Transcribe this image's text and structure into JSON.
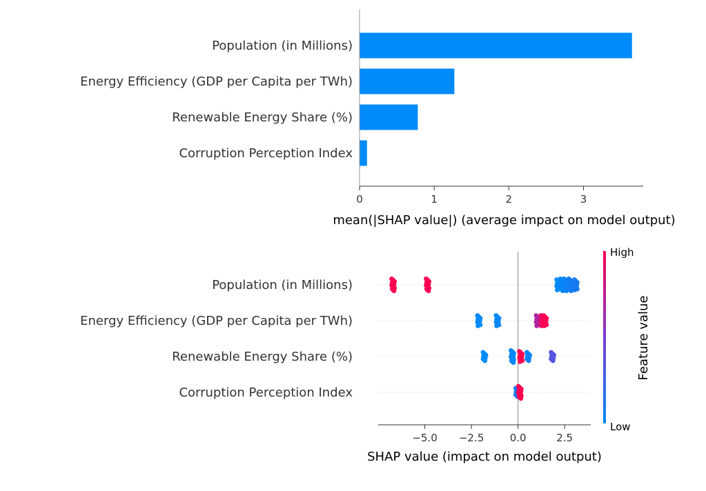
{
  "chart_data": [
    {
      "type": "bar",
      "orientation": "horizontal",
      "categories": [
        "Population (in Millions)",
        "Energy Efficiency (GDP per Capita per TWh)",
        "Renewable Energy Share (%)",
        "Corruption Perception Index"
      ],
      "values": [
        3.65,
        1.27,
        0.78,
        0.1
      ],
      "xlabel": "mean(|SHAP value|) (average impact on model output)",
      "xlim": [
        0,
        3.8
      ],
      "xticks": [
        "0",
        "1",
        "2",
        "3"
      ],
      "bar_color": "#008bfb"
    },
    {
      "type": "scatter",
      "subtype": "beeswarm",
      "categories": [
        "Population (in Millions)",
        "Energy Efficiency (GDP per Capita per TWh)",
        "Renewable Energy Share (%)",
        "Corruption Perception Index"
      ],
      "xlabel": "SHAP value (impact on model output)",
      "xlim": [
        -7.5,
        3.9
      ],
      "xticks": [
        "−5.0",
        "−2.5",
        "0.0",
        "2.5"
      ],
      "colorbar": {
        "label": "Feature value",
        "high": "High",
        "low": "Low",
        "low_color": "#008bfb",
        "high_color": "#ff0052"
      },
      "points": [
        [
          {
            "x": -6.7,
            "f": 1.0,
            "n": 14
          },
          {
            "x": -4.85,
            "f": 1.0,
            "n": 14
          },
          {
            "x": 2.15,
            "f": 0.0,
            "n": 12
          },
          {
            "x": 2.35,
            "f": 0.02,
            "n": 14
          },
          {
            "x": 2.55,
            "f": 0.05,
            "n": 14
          },
          {
            "x": 2.8,
            "f": 0.08,
            "n": 14
          },
          {
            "x": 3.1,
            "f": 0.1,
            "n": 12
          }
        ],
        [
          {
            "x": -2.1,
            "f": 0.0,
            "n": 12
          },
          {
            "x": -1.1,
            "f": 0.02,
            "n": 12
          },
          {
            "x": 1.05,
            "f": 0.7,
            "n": 12
          },
          {
            "x": 1.3,
            "f": 0.92,
            "n": 12
          },
          {
            "x": 1.45,
            "f": 1.0,
            "n": 12
          }
        ],
        [
          {
            "x": -1.8,
            "f": 0.0,
            "n": 10
          },
          {
            "x": -0.3,
            "f": 0.02,
            "n": 14
          },
          {
            "x": 0.15,
            "f": 1.0,
            "n": 12
          },
          {
            "x": 0.55,
            "f": 0.05,
            "n": 10
          },
          {
            "x": 1.85,
            "f": 0.35,
            "n": 10
          }
        ],
        [
          {
            "x": -0.05,
            "f": 0.1,
            "n": 10
          },
          {
            "x": 0.1,
            "f": 1.0,
            "n": 14
          }
        ]
      ]
    }
  ]
}
